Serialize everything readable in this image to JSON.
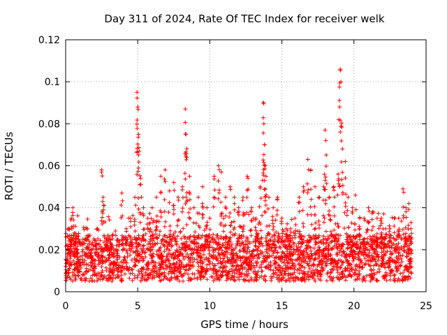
{
  "chart_data": {
    "type": "scatter",
    "title": "Day 311 of 2024, Rate Of TEC Index for receiver welk",
    "xlabel": "GPS time / hours",
    "ylabel": "ROTI / TECUs",
    "xlim": [
      0,
      25
    ],
    "ylim": [
      0,
      0.12
    ],
    "x_ticks": [
      0,
      5,
      10,
      15,
      20,
      25
    ],
    "x_tick_labels": [
      "0",
      "5",
      "10",
      "15",
      "20",
      "25"
    ],
    "y_ticks": [
      0,
      0.02,
      0.04,
      0.06,
      0.08,
      0.1,
      0.12
    ],
    "y_tick_labels": [
      "0",
      "0.02",
      "0.04",
      "0.06",
      "0.08",
      "0.1",
      "0.12"
    ],
    "grid": true,
    "marker": "+",
    "color": "#ff0000",
    "series": [
      {
        "name": "ROTI",
        "base_points": [
          [
            0.0,
            0.012
          ],
          [
            0.1,
            0.018
          ],
          [
            0.2,
            0.03
          ],
          [
            0.3,
            0.025
          ],
          [
            0.4,
            0.035
          ],
          [
            0.5,
            0.04
          ],
          [
            0.6,
            0.028
          ],
          [
            0.8,
            0.02
          ],
          [
            1.0,
            0.015
          ],
          [
            1.2,
            0.025
          ],
          [
            1.5,
            0.03
          ],
          [
            1.8,
            0.02
          ],
          [
            2.0,
            0.015
          ],
          [
            2.2,
            0.03
          ],
          [
            2.5,
            0.058
          ],
          [
            2.6,
            0.045
          ],
          [
            2.8,
            0.025
          ],
          [
            3.0,
            0.02
          ],
          [
            3.3,
            0.018
          ],
          [
            3.6,
            0.025
          ],
          [
            3.9,
            0.047
          ],
          [
            4.2,
            0.03
          ],
          [
            4.5,
            0.035
          ],
          [
            4.8,
            0.045
          ],
          [
            4.95,
            0.095
          ],
          [
            5.0,
            0.088
          ],
          [
            5.05,
            0.075
          ],
          [
            5.1,
            0.067
          ],
          [
            5.2,
            0.054
          ],
          [
            5.4,
            0.04
          ],
          [
            5.7,
            0.035
          ],
          [
            6.0,
            0.04
          ],
          [
            6.3,
            0.045
          ],
          [
            6.6,
            0.055
          ],
          [
            6.9,
            0.058
          ],
          [
            7.2,
            0.048
          ],
          [
            7.5,
            0.052
          ],
          [
            7.8,
            0.045
          ],
          [
            8.1,
            0.05
          ],
          [
            8.3,
            0.087
          ],
          [
            8.35,
            0.075
          ],
          [
            8.4,
            0.064
          ],
          [
            8.6,
            0.055
          ],
          [
            8.9,
            0.04
          ],
          [
            9.2,
            0.045
          ],
          [
            9.5,
            0.05
          ],
          [
            9.8,
            0.04
          ],
          [
            10.0,
            0.035
          ],
          [
            10.3,
            0.055
          ],
          [
            10.6,
            0.06
          ],
          [
            10.8,
            0.057
          ],
          [
            11.1,
            0.045
          ],
          [
            11.4,
            0.05
          ],
          [
            11.7,
            0.045
          ],
          [
            12.0,
            0.04
          ],
          [
            12.3,
            0.045
          ],
          [
            12.6,
            0.055
          ],
          [
            12.9,
            0.04
          ],
          [
            13.2,
            0.035
          ],
          [
            13.5,
            0.05
          ],
          [
            13.7,
            0.09
          ],
          [
            13.75,
            0.08
          ],
          [
            13.8,
            0.07
          ],
          [
            13.85,
            0.06
          ],
          [
            13.9,
            0.055
          ],
          [
            14.1,
            0.045
          ],
          [
            14.4,
            0.04
          ],
          [
            14.7,
            0.045
          ],
          [
            15.0,
            0.035
          ],
          [
            15.3,
            0.03
          ],
          [
            15.6,
            0.03
          ],
          [
            15.9,
            0.035
          ],
          [
            16.2,
            0.045
          ],
          [
            16.5,
            0.05
          ],
          [
            16.8,
            0.063
          ],
          [
            17.0,
            0.058
          ],
          [
            17.3,
            0.05
          ],
          [
            17.6,
            0.045
          ],
          [
            17.9,
            0.05
          ],
          [
            18.0,
            0.077
          ],
          [
            18.05,
            0.072
          ],
          [
            18.3,
            0.045
          ],
          [
            18.6,
            0.05
          ],
          [
            18.9,
            0.056
          ],
          [
            19.0,
            0.088
          ],
          [
            19.05,
            0.106
          ],
          [
            19.1,
            0.1
          ],
          [
            19.2,
            0.068
          ],
          [
            19.4,
            0.062
          ],
          [
            19.6,
            0.045
          ],
          [
            19.9,
            0.04
          ],
          [
            20.1,
            0.046
          ],
          [
            20.4,
            0.035
          ],
          [
            20.7,
            0.035
          ],
          [
            21.0,
            0.04
          ],
          [
            21.3,
            0.038
          ],
          [
            21.6,
            0.035
          ],
          [
            21.9,
            0.035
          ],
          [
            22.2,
            0.03
          ],
          [
            22.5,
            0.03
          ],
          [
            22.8,
            0.035
          ],
          [
            23.1,
            0.035
          ],
          [
            23.4,
            0.049
          ],
          [
            23.6,
            0.04
          ],
          [
            23.8,
            0.042
          ],
          [
            23.95,
            0.03
          ]
        ]
      }
    ]
  }
}
